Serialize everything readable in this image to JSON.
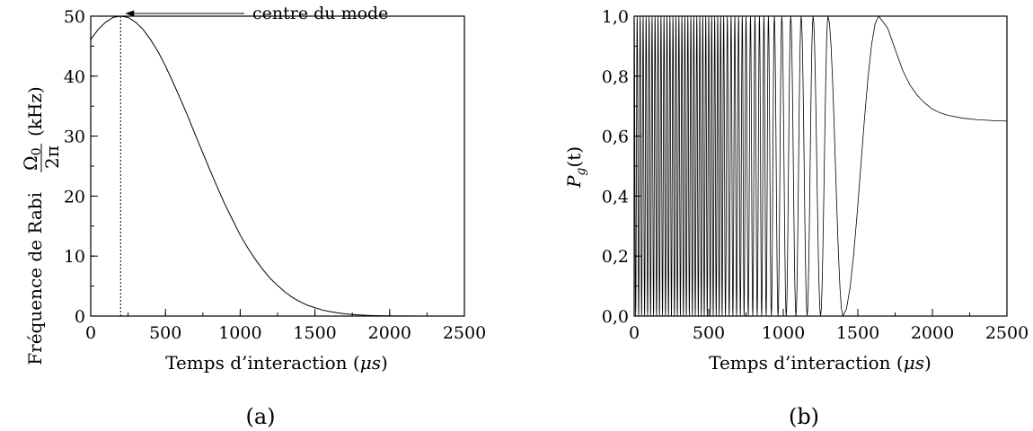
{
  "chart_data": [
    {
      "type": "line",
      "panel_label": "(a)",
      "xlabel": "Temps d’interaction (μs)",
      "xlabel_parts": {
        "pre": "Temps d’interaction (",
        "mu": "μ",
        "s": "s",
        "post": ")"
      },
      "ylabel": "Fréquence de Rabi Ω₀/2π (kHz)",
      "ylabel_parts": {
        "pre": "Fréquence de Rabi",
        "num": "Ω",
        "num_sub": "0",
        "den": "2π",
        "post": "(kHz)"
      },
      "xlim": [
        0,
        2500
      ],
      "ylim": [
        0,
        50
      ],
      "xticks": [
        0,
        500,
        1000,
        1500,
        2000,
        2500
      ],
      "xtick_labels": [
        "0",
        "500",
        "1000",
        "1500",
        "2000",
        "2500"
      ],
      "yticks": [
        0,
        10,
        20,
        30,
        40,
        50
      ],
      "ytick_labels": [
        "0",
        "10",
        "20",
        "30",
        "40",
        "50"
      ],
      "series": [
        {
          "x": [
            0,
            50,
            100,
            150,
            200,
            250,
            300,
            350,
            400,
            450,
            500,
            550,
            600,
            650,
            700,
            750,
            800,
            850,
            900,
            950,
            1000,
            1050,
            1100,
            1150,
            1200,
            1250,
            1300,
            1350,
            1400,
            1450,
            1500,
            1550,
            1600,
            1650,
            1700,
            1750,
            1800,
            1850,
            1900,
            1950,
            2000,
            2050,
            2100,
            2200,
            2300,
            2400,
            2500
          ],
          "y": [
            46.1,
            47.8,
            49.0,
            49.8,
            50.0,
            49.8,
            49.0,
            47.8,
            46.1,
            44.1,
            41.7,
            39.0,
            36.2,
            33.3,
            30.2,
            27.2,
            24.2,
            21.3,
            18.5,
            16.0,
            13.5,
            11.4,
            9.5,
            7.8,
            6.3,
            5.1,
            4.0,
            3.1,
            2.4,
            1.8,
            1.4,
            1.0,
            0.75,
            0.54,
            0.38,
            0.27,
            0.18,
            0.12,
            0.08,
            0.05,
            0.03,
            0.02,
            0.01,
            0.0,
            0.0,
            0.0,
            0.0
          ]
        }
      ],
      "annotations": [
        {
          "text": "centre du mode",
          "x": 200,
          "y": 50
        }
      ],
      "vline_x": 200
    },
    {
      "type": "line",
      "panel_label": "(b)",
      "xlabel": "Temps d’interaction (μs)",
      "xlabel_parts": {
        "pre": "Temps d’interaction (",
        "mu": "μ",
        "s": "s",
        "post": ")"
      },
      "ylabel": "P_g(t)",
      "ylabel_parts": {
        "P": "P",
        "sub": "g",
        "rest": "(t)"
      },
      "xlim": [
        0,
        2500
      ],
      "ylim": [
        0,
        1
      ],
      "xticks": [
        0,
        500,
        1000,
        1500,
        2000,
        2500
      ],
      "xtick_labels": [
        "0",
        "500",
        "1000",
        "1500",
        "2000",
        "2500"
      ],
      "yticks": [
        0,
        0.2,
        0.4,
        0.6,
        0.8,
        1.0
      ],
      "ytick_labels": [
        "0,0",
        "0,2",
        "0,4",
        "0,6",
        "0,8",
        "1,0"
      ],
      "series": [
        {
          "description": "Rabi oscillations between 0 and 1 with increasing period; last full minimum near 1400 μs, final maximum near 1640 μs, then relaxes to about 0.65",
          "peaks_x": [
            0,
            20,
            40,
            60,
            80,
            100,
            120,
            140,
            160,
            180,
            200,
            220,
            240,
            260,
            280,
            300,
            320,
            340,
            360,
            380,
            400,
            420,
            440,
            460,
            480,
            500,
            520,
            540,
            560,
            580,
            600,
            625,
            650,
            675,
            700,
            725,
            750,
            780,
            810,
            840,
            870,
            900,
            940,
            990,
            1050,
            1120,
            1200,
            1300,
            1640
          ],
          "troughs_x": [
            10,
            30,
            50,
            70,
            90,
            110,
            130,
            150,
            170,
            190,
            210,
            230,
            250,
            270,
            290,
            310,
            330,
            350,
            370,
            390,
            410,
            430,
            450,
            470,
            490,
            510,
            530,
            550,
            570,
            590,
            612,
            637,
            662,
            687,
            712,
            737,
            765,
            795,
            825,
            855,
            885,
            920,
            965,
            1020,
            1085,
            1160,
            1250,
            1400
          ],
          "tail_x": [
            1640,
            1700,
            1750,
            1800,
            1850,
            1900,
            1950,
            2000,
            2050,
            2100,
            2200,
            2300,
            2400,
            2500
          ],
          "tail_y": [
            1.0,
            0.96,
            0.89,
            0.82,
            0.77,
            0.735,
            0.71,
            0.69,
            0.678,
            0.67,
            0.66,
            0.655,
            0.652,
            0.65
          ]
        }
      ]
    }
  ]
}
